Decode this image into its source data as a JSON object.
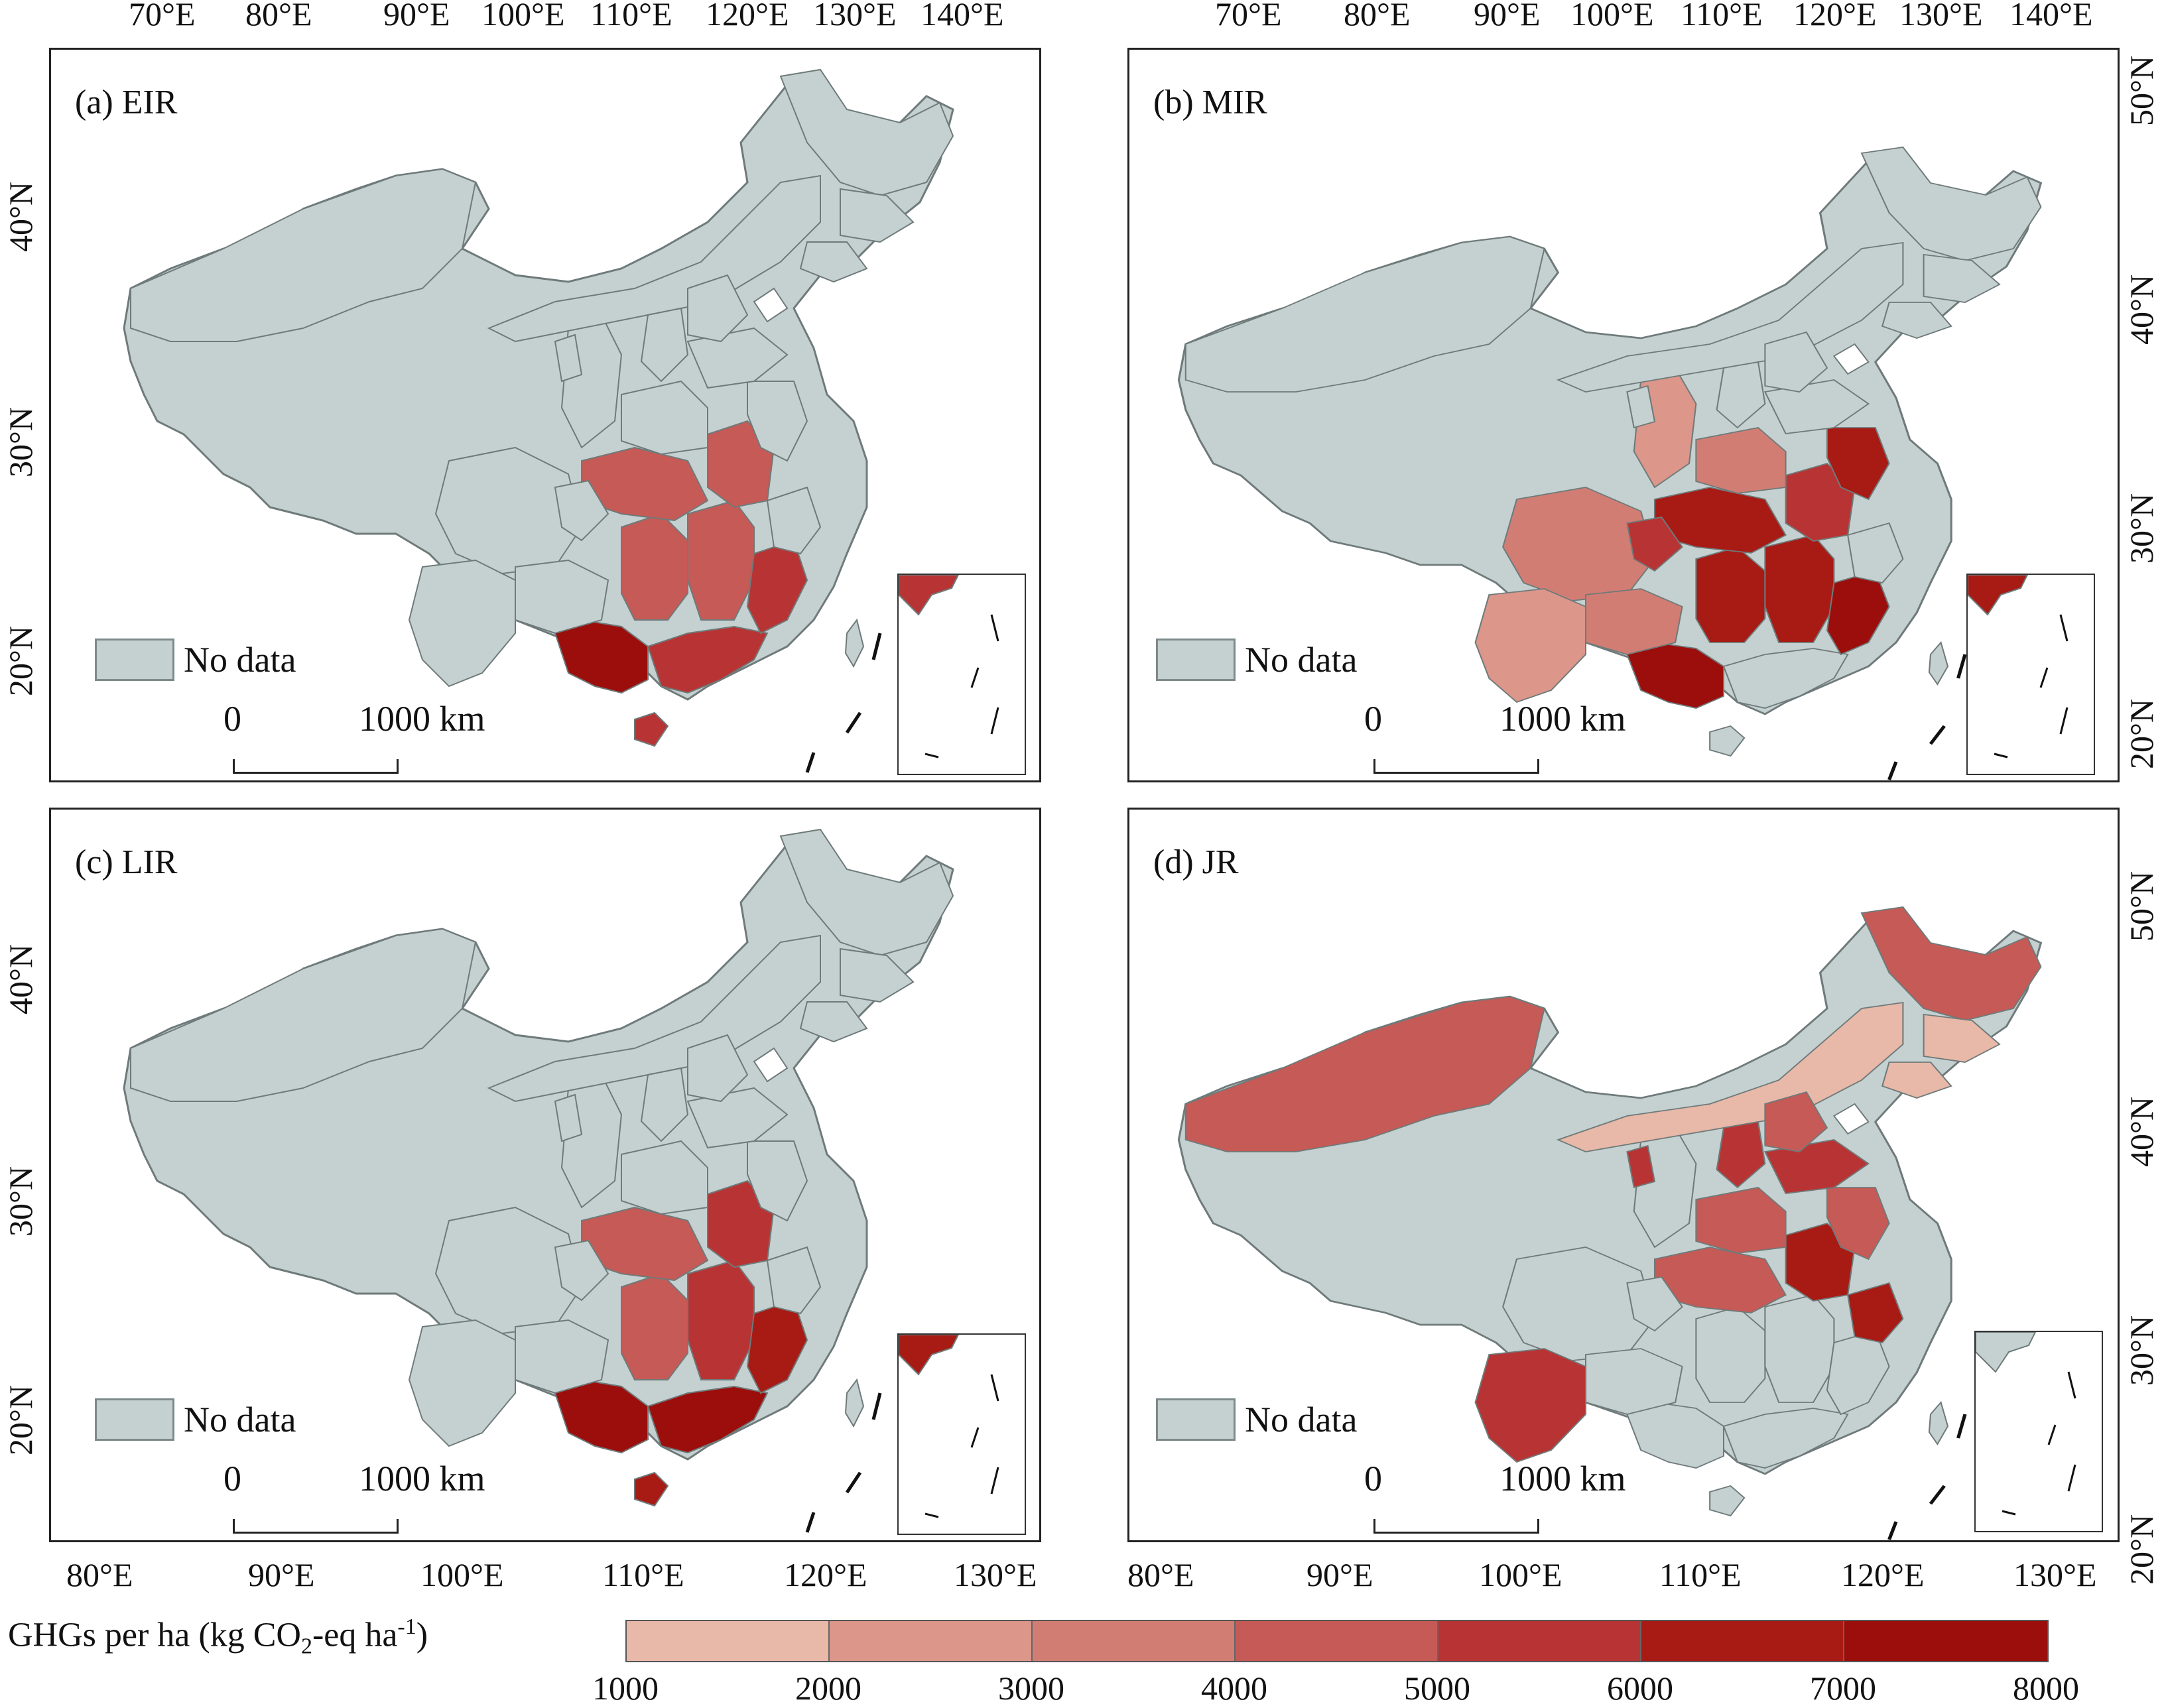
{
  "top_lon_ticks_left": [
    "70°E",
    "80°E",
    "90°E",
    "100°E",
    "110°E",
    "120°E",
    "130°E",
    "140°E"
  ],
  "top_lon_ticks_right": [
    "70°E",
    "80°E",
    "90°E",
    "100°E",
    "110°E",
    "120°E",
    "130°E",
    "140°E"
  ],
  "bottom_lon_ticks_left": [
    "80°E",
    "90°E",
    "100°E",
    "110°E",
    "120°E",
    "130°E"
  ],
  "bottom_lon_ticks_right": [
    "80°E",
    "90°E",
    "100°E",
    "110°E",
    "120°E",
    "130°E"
  ],
  "left_lat_ticks_top": [
    "40°N",
    "30°N",
    "20°N"
  ],
  "left_lat_ticks_bottom": [
    "40°N",
    "30°N",
    "20°N"
  ],
  "right_lat_ticks_top": [
    "50°N",
    "40°N",
    "30°N",
    "20°N"
  ],
  "right_lat_ticks_bottom": [
    "50°N",
    "40°N",
    "30°N",
    "20°N"
  ],
  "panels": [
    {
      "title": "(a) EIR",
      "nodata_label": "No data",
      "scale_zero": "0",
      "scale_label": "1000 km"
    },
    {
      "title": "(b) MIR",
      "nodata_label": "No data",
      "scale_zero": "0",
      "scale_label": "1000 km"
    },
    {
      "title": "(c) LIR",
      "nodata_label": "No data",
      "scale_zero": "0",
      "scale_label": "1000 km"
    },
    {
      "title": "(d) JR",
      "nodata_label": "No data",
      "scale_zero": "0",
      "scale_label": "1000 km"
    }
  ],
  "legend": {
    "title_main": "GHGs per ha (kg CO",
    "title_sub": "2",
    "title_mid": "-eq ha",
    "title_sup": "-1",
    "title_end": ")",
    "ticks": [
      "1000",
      "2000",
      "3000",
      "4000",
      "5000",
      "6000",
      "7000",
      "8000"
    ],
    "colors": [
      "#e8b8a8",
      "#dc968a",
      "#d27d74",
      "#c55a56",
      "#b83434",
      "#a81a14",
      "#9c0e0c"
    ]
  },
  "colors": {
    "nodata": "#c5d1d1",
    "border": "#6f7a7a",
    "c1": "#e8b8a8",
    "c2": "#dc968a",
    "c3": "#d27d74",
    "c4": "#c55a56",
    "c5": "#b83434",
    "c6": "#a81a14",
    "c7": "#9c0e0c"
  }
}
